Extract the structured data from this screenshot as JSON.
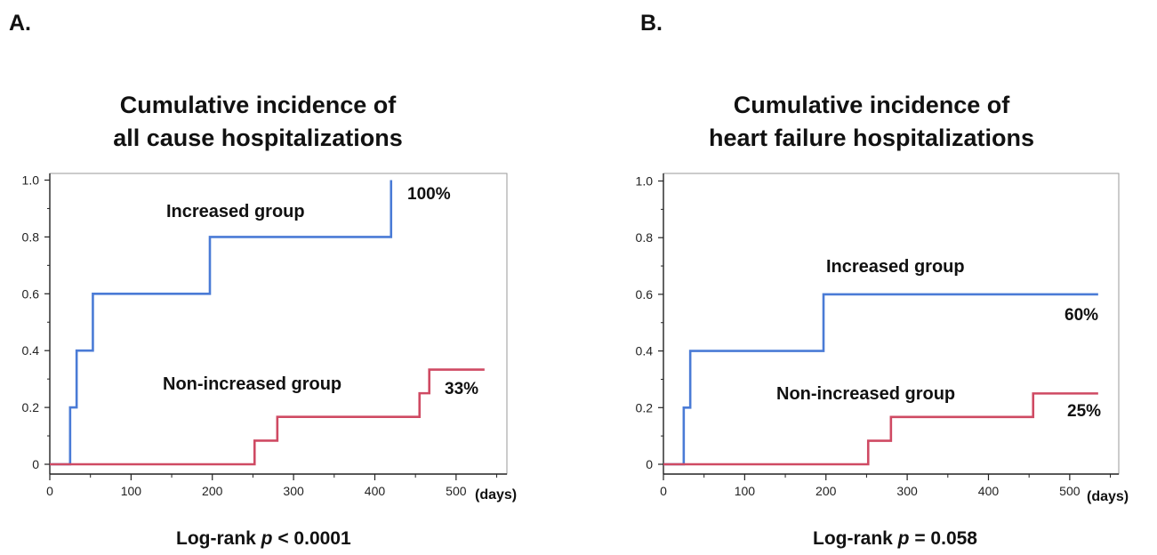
{
  "chart_data": [
    {
      "type": "line",
      "panel_label": "A.",
      "title_lines": [
        "Cumulative incidence of",
        "all cause hospitalizations"
      ],
      "xlabel": "",
      "ylabel": "",
      "x_unit_label": "(days)",
      "xlim": [
        0,
        560
      ],
      "ylim": [
        -0.05,
        1.05
      ],
      "x_ticks": [
        0,
        100,
        200,
        300,
        400,
        500
      ],
      "y_ticks": [
        0,
        0.2,
        0.4,
        0.6,
        0.8,
        1.0
      ],
      "y_tick_labels": [
        "0",
        "0.2",
        "0.4",
        "0.6",
        "0.8",
        "1.0"
      ],
      "series": [
        {
          "name": "Increased group",
          "color": "#4a7bd6",
          "end_label": "100%",
          "steps": [
            [
              0,
              0
            ],
            [
              25,
              0.2
            ],
            [
              33,
              0.4
            ],
            [
              53,
              0.6
            ],
            [
              197,
              0.8
            ],
            [
              420,
              1.0
            ]
          ],
          "end_x": 420
        },
        {
          "name": "Non-increased group",
          "color": "#cf4a63",
          "end_label": "33%",
          "steps": [
            [
              0,
              0
            ],
            [
              252,
              0.083
            ],
            [
              280,
              0.167
            ],
            [
              455,
              0.25
            ],
            [
              467,
              0.333
            ]
          ],
          "end_x": 535
        }
      ],
      "footer": {
        "prefix": "Log-rank ",
        "p": "p",
        "suffix": " < 0.0001"
      }
    },
    {
      "type": "line",
      "panel_label": "B.",
      "title_lines": [
        "Cumulative incidence of",
        "heart failure hospitalizations"
      ],
      "xlabel": "",
      "ylabel": "",
      "x_unit_label": "(days)",
      "xlim": [
        0,
        560
      ],
      "ylim": [
        -0.05,
        1.05
      ],
      "x_ticks": [
        0,
        100,
        200,
        300,
        400,
        500
      ],
      "y_ticks": [
        0,
        0.2,
        0.4,
        0.6,
        0.8,
        1.0
      ],
      "y_tick_labels": [
        "0",
        "0.2",
        "0.4",
        "0.6",
        "0.8",
        "1.0"
      ],
      "series": [
        {
          "name": "Increased group",
          "color": "#4a7bd6",
          "end_label": "60%",
          "steps": [
            [
              0,
              0
            ],
            [
              25,
              0.2
            ],
            [
              33,
              0.4
            ],
            [
              197,
              0.6
            ]
          ],
          "end_x": 535
        },
        {
          "name": "Non-increased group",
          "color": "#cf4a63",
          "end_label": "25%",
          "steps": [
            [
              0,
              0
            ],
            [
              252,
              0.083
            ],
            [
              280,
              0.167
            ],
            [
              455,
              0.25
            ]
          ],
          "end_x": 535
        }
      ],
      "footer": {
        "prefix": "Log-rank ",
        "p": "p",
        "suffix": " = 0.058"
      }
    }
  ]
}
